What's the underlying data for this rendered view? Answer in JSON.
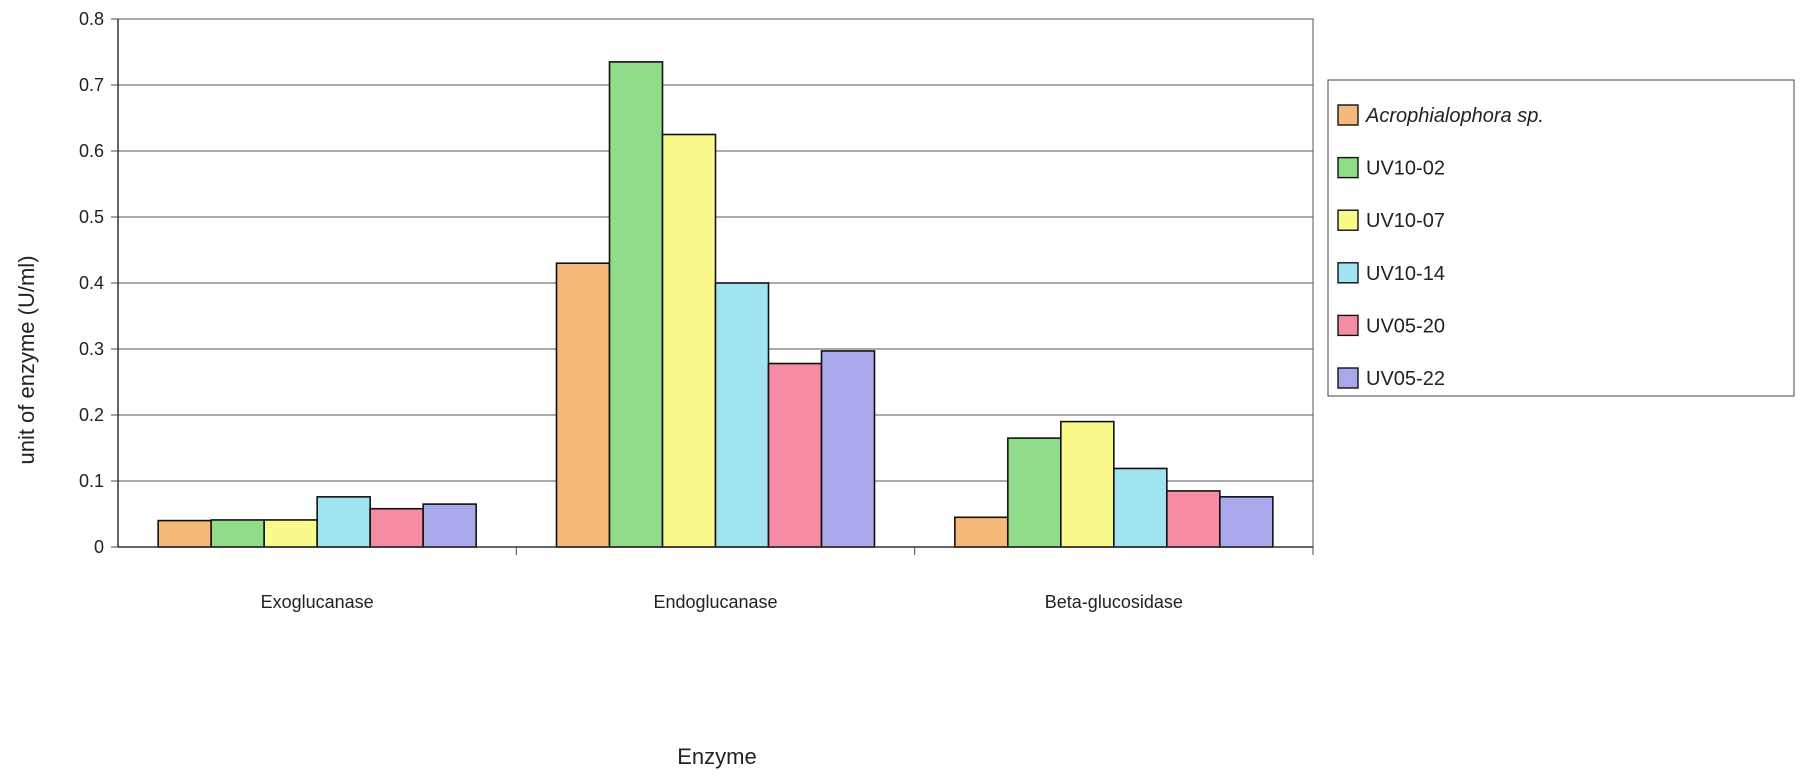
{
  "chart_data": {
    "type": "bar",
    "title": "",
    "xlabel": "Enzyme",
    "ylabel": "unit of enzyme (U/ml)",
    "ylim": [
      0,
      0.8
    ],
    "yticks": [
      "0",
      "0.1",
      "0.2",
      "0.3",
      "0.4",
      "0.5",
      "0.6",
      "0.7",
      "0.8"
    ],
    "grid": true,
    "legend_position": "right",
    "categories": [
      "Exoglucanase",
      "Endoglucanase",
      "Beta-glucosidase"
    ],
    "series": [
      {
        "name": "Acrophialophora sp.",
        "color": "#f5b97a",
        "italic": true,
        "values": [
          0.04,
          0.43,
          0.045
        ]
      },
      {
        "name": "UV10-02",
        "color": "#90dc88",
        "italic": false,
        "values": [
          0.041,
          0.735,
          0.165
        ]
      },
      {
        "name": "UV10-07",
        "color": "#fafa8c",
        "italic": false,
        "values": [
          0.041,
          0.625,
          0.19
        ]
      },
      {
        "name": "UV10-14",
        "color": "#a0e4f2",
        "italic": false,
        "values": [
          0.076,
          0.4,
          0.119
        ]
      },
      {
        "name": "UV05-20",
        "color": "#f58ca4",
        "italic": false,
        "values": [
          0.058,
          0.278,
          0.085
        ]
      },
      {
        "name": "UV05-22",
        "color": "#a8a8ea",
        "italic": false,
        "values": [
          0.065,
          0.297,
          0.076
        ]
      }
    ]
  }
}
